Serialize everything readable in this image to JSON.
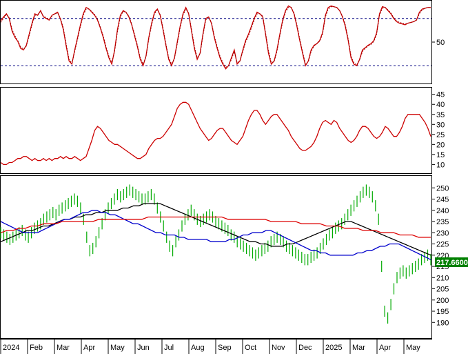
{
  "chart_data": [
    {
      "type": "line",
      "panel": "stochastic",
      "ylim": [
        0,
        100
      ],
      "yticks": [
        50
      ],
      "reference_lines": [
        20,
        80
      ],
      "reference_style": "dashed",
      "x": [
        0,
        4,
        8,
        12,
        16,
        20,
        24,
        28,
        32,
        36,
        40,
        44,
        48,
        52,
        56,
        60,
        64,
        68,
        72,
        76,
        80,
        84,
        88,
        92,
        96,
        100,
        104,
        108,
        112,
        116,
        120,
        124,
        128,
        132,
        136,
        140,
        144,
        148,
        152,
        156,
        160,
        164,
        168,
        172,
        176,
        180,
        184,
        188,
        192,
        196,
        200,
        204,
        208,
        212,
        216,
        220,
        224,
        228,
        232,
        236,
        240,
        244,
        248,
        252,
        256,
        260,
        264,
        268,
        272,
        276,
        280,
        284,
        288,
        292,
        296,
        300,
        304,
        308,
        312,
        316,
        320,
        324,
        328,
        332,
        336,
        340,
        344,
        348,
        352,
        356,
        360,
        364,
        368,
        372,
        376,
        380,
        384,
        388,
        392,
        396,
        400,
        404,
        408,
        412,
        416,
        420,
        424,
        428,
        432,
        436,
        440,
        444,
        448,
        452,
        456,
        460,
        464,
        468,
        472,
        476,
        480,
        484,
        488,
        492,
        496,
        500,
        504,
        508,
        512,
        516,
        520,
        524,
        528,
        532,
        536,
        540,
        544,
        548,
        552,
        556,
        560,
        564,
        568,
        572,
        576,
        580,
        584,
        588,
        592,
        596,
        600,
        604
      ],
      "series": [
        {
          "name": "",
          "color": "#cc0000",
          "style": "solid",
          "values": [
            77,
            82,
            86,
            80,
            64,
            56,
            51,
            42,
            40,
            46,
            60,
            74,
            86,
            84,
            90,
            82,
            80,
            78,
            84,
            86,
            88,
            79,
            66,
            45,
            26,
            22,
            40,
            56,
            72,
            86,
            94,
            92,
            88,
            84,
            78,
            68,
            56,
            42,
            30,
            22,
            40,
            66,
            84,
            90,
            88,
            82,
            72,
            58,
            44,
            28,
            20,
            32,
            56,
            74,
            88,
            92,
            84,
            66,
            46,
            28,
            20,
            30,
            50,
            70,
            86,
            94,
            86,
            64,
            42,
            28,
            36,
            60,
            80,
            82,
            74,
            56,
            42,
            30,
            22,
            16,
            20,
            30,
            40,
            22,
            26,
            40,
            52,
            60,
            70,
            80,
            88,
            86,
            82,
            60,
            36,
            22,
            26,
            40,
            60,
            78,
            90,
            96,
            94,
            86,
            70,
            52,
            36,
            20,
            26,
            40,
            46,
            48,
            52,
            62,
            84,
            94,
            96,
            95,
            94,
            90,
            82,
            70,
            52,
            30,
            22,
            20,
            28,
            40,
            43,
            46,
            48,
            52,
            62,
            86,
            95,
            94,
            90,
            86,
            80,
            76,
            74,
            73,
            72,
            74,
            75,
            76,
            78,
            88,
            92,
            93,
            94,
            94
          ]
        },
        {
          "name": "",
          "color": "#990000",
          "style": "dashed",
          "values": [
            75,
            80,
            85,
            81,
            66,
            58,
            52,
            44,
            41,
            45,
            58,
            72,
            84,
            85,
            89,
            83,
            81,
            79,
            83,
            86,
            87,
            80,
            68,
            48,
            28,
            23,
            38,
            54,
            70,
            84,
            92,
            92,
            89,
            85,
            79,
            69,
            58,
            44,
            32,
            24,
            38,
            63,
            82,
            89,
            88,
            83,
            73,
            60,
            46,
            30,
            22,
            31,
            54,
            72,
            86,
            91,
            85,
            68,
            48,
            30,
            22,
            29,
            48,
            68,
            84,
            92,
            87,
            66,
            45,
            30,
            35,
            58,
            78,
            82,
            75,
            58,
            44,
            32,
            24,
            18,
            20,
            28,
            38,
            24,
            26,
            38,
            50,
            58,
            68,
            78,
            86,
            86,
            83,
            62,
            39,
            24,
            25,
            38,
            58,
            76,
            88,
            94,
            94,
            87,
            72,
            54,
            38,
            22,
            25,
            38,
            45,
            48,
            51,
            60,
            82,
            92,
            95,
            95,
            94,
            90,
            83,
            72,
            54,
            32,
            24,
            21,
            27,
            38,
            42,
            45,
            47,
            51,
            60,
            84,
            93,
            94,
            91,
            87,
            81,
            77,
            75,
            74,
            73,
            74,
            75,
            76,
            78,
            86,
            91,
            93,
            94,
            94
          ]
        }
      ]
    },
    {
      "type": "line",
      "panel": "indicator",
      "ylim": [
        6,
        48
      ],
      "yticks": [
        10,
        15,
        20,
        25,
        30,
        35,
        40,
        45
      ],
      "series": [
        {
          "name": "",
          "color": "#cc0000",
          "values": [
            11,
            10,
            10,
            11,
            11,
            12,
            13,
            13,
            14,
            14,
            13,
            12,
            13,
            12,
            12,
            13,
            12,
            13,
            12,
            13,
            13,
            14,
            13,
            14,
            13,
            13,
            14,
            13,
            12,
            13,
            14,
            18,
            22,
            27,
            29,
            28,
            26,
            24,
            22,
            21,
            20,
            20,
            19,
            18,
            17,
            16,
            15,
            14,
            13,
            13,
            14,
            15,
            18,
            20,
            22,
            23,
            23,
            24,
            26,
            28,
            30,
            34,
            38,
            40,
            41,
            41,
            40,
            37,
            34,
            31,
            28,
            26,
            24,
            22,
            23,
            25,
            27,
            28,
            28,
            26,
            24,
            22,
            21,
            20,
            22,
            24,
            28,
            32,
            35,
            37,
            37,
            35,
            32,
            30,
            32,
            34,
            35,
            35,
            33,
            31,
            29,
            27,
            24,
            22,
            20,
            18,
            17,
            17,
            18,
            19,
            21,
            24,
            28,
            31,
            32,
            31,
            30,
            32,
            31,
            28,
            26,
            24,
            22,
            21,
            22,
            24,
            27,
            29,
            29,
            28,
            26,
            24,
            23,
            24,
            26,
            29,
            28,
            26,
            24,
            24,
            26,
            29,
            33,
            35,
            35,
            35,
            35,
            35,
            33,
            31,
            28,
            24
          ]
        }
      ]
    },
    {
      "type": "line",
      "panel": "price",
      "last_value": "217.6600",
      "ylim": [
        183,
        255
      ],
      "yticks": [
        190,
        195,
        200,
        205,
        210,
        215,
        220,
        225,
        230,
        235,
        240,
        245,
        250
      ],
      "x_axis": {
        "labels": [
          "2024",
          "Feb",
          "Mar",
          "Apr",
          "May",
          "Jun",
          "Jul",
          "Aug",
          "Sep",
          "Oct",
          "Nov",
          "Dec",
          "2025",
          "Mar",
          "Apr",
          "May"
        ]
      },
      "series": [
        {
          "name": "",
          "color": "#00aa00",
          "style": "bars",
          "values": [
            230,
            229,
            228,
            227,
            228,
            229,
            230,
            231,
            229,
            228,
            230,
            232,
            233,
            234,
            236,
            237,
            238,
            239,
            238,
            240,
            241,
            242,
            243,
            244,
            245,
            244,
            241,
            236,
            228,
            222,
            223,
            226,
            230,
            234,
            238,
            241,
            243,
            245,
            247,
            246,
            247,
            248,
            249,
            248,
            247,
            246,
            245,
            245,
            246,
            247,
            245,
            241,
            237,
            233,
            228,
            224,
            222,
            226,
            229,
            233,
            236,
            238,
            240,
            238,
            236,
            235,
            236,
            237,
            238,
            237,
            235,
            234,
            233,
            232,
            231,
            229,
            228,
            226,
            225,
            224,
            223,
            222,
            221,
            220,
            221,
            222,
            223,
            224,
            226,
            227,
            228,
            227,
            226,
            224,
            223,
            222,
            221,
            220,
            219,
            218,
            218,
            219,
            220,
            221,
            223,
            225,
            227,
            229,
            230,
            232,
            233,
            234,
            236,
            238,
            240,
            242,
            244,
            246,
            248,
            249,
            248,
            246,
            242,
            236,
            215,
            195,
            192,
            198,
            205,
            210,
            212,
            213,
            212,
            213,
            214,
            215,
            216,
            218,
            219,
            220,
            218
          ]
        },
        {
          "name": "",
          "color": "#000000",
          "style": "solid",
          "values": [
            226,
            227,
            228,
            229,
            230,
            231,
            231,
            232,
            233,
            233,
            234,
            235,
            236,
            236,
            237,
            237,
            238,
            238,
            239,
            239,
            240,
            240,
            240,
            241,
            241,
            242,
            242,
            243,
            243,
            243,
            243,
            242,
            241,
            240,
            239,
            238,
            237,
            236,
            235,
            234,
            233,
            232,
            231,
            230,
            229,
            228,
            227,
            226,
            226,
            225,
            225,
            224,
            224,
            224,
            225,
            225,
            226,
            227,
            228,
            229,
            230,
            231,
            232,
            233,
            234,
            235,
            235,
            234,
            233,
            232,
            231,
            230,
            229,
            228,
            227,
            226,
            225,
            224,
            223,
            222,
            221,
            220
          ]
        },
        {
          "name": "",
          "color": "#0000cc",
          "style": "solid",
          "values": [
            235,
            234,
            233,
            232,
            231,
            230,
            230,
            230,
            230,
            231,
            232,
            233,
            234,
            235,
            236,
            236,
            237,
            238,
            239,
            239,
            240,
            240,
            239,
            239,
            238,
            238,
            237,
            236,
            235,
            234,
            234,
            233,
            232,
            231,
            230,
            230,
            229,
            229,
            229,
            228,
            228,
            227,
            227,
            227,
            227,
            227,
            226,
            226,
            226,
            226,
            227,
            227,
            228,
            229,
            229,
            230,
            230,
            230,
            231,
            231,
            230,
            229,
            228,
            227,
            226,
            225,
            224,
            223,
            222,
            222,
            221,
            221,
            220,
            220,
            220,
            220,
            220,
            220,
            221,
            221,
            222,
            222,
            223,
            224,
            224,
            225,
            225,
            225,
            224,
            223,
            222,
            221,
            220,
            219,
            218
          ]
        },
        {
          "name": "",
          "color": "#dd0000",
          "style": "solid",
          "values": [
            230,
            231,
            231,
            232,
            232,
            233,
            233,
            234,
            234,
            234,
            235,
            235,
            235,
            235,
            235,
            235,
            236,
            236,
            236,
            236,
            236,
            236,
            236,
            236,
            237,
            237,
            237,
            237,
            237,
            237,
            237,
            237,
            237,
            237,
            237,
            237,
            237,
            236,
            236,
            236,
            236,
            236,
            236,
            236,
            235,
            235,
            235,
            235,
            235,
            234,
            234,
            234,
            234,
            233,
            233,
            233,
            232,
            232,
            232,
            231,
            231,
            231,
            230,
            230,
            230,
            229,
            229,
            229,
            228,
            228,
            228
          ]
        }
      ]
    }
  ]
}
